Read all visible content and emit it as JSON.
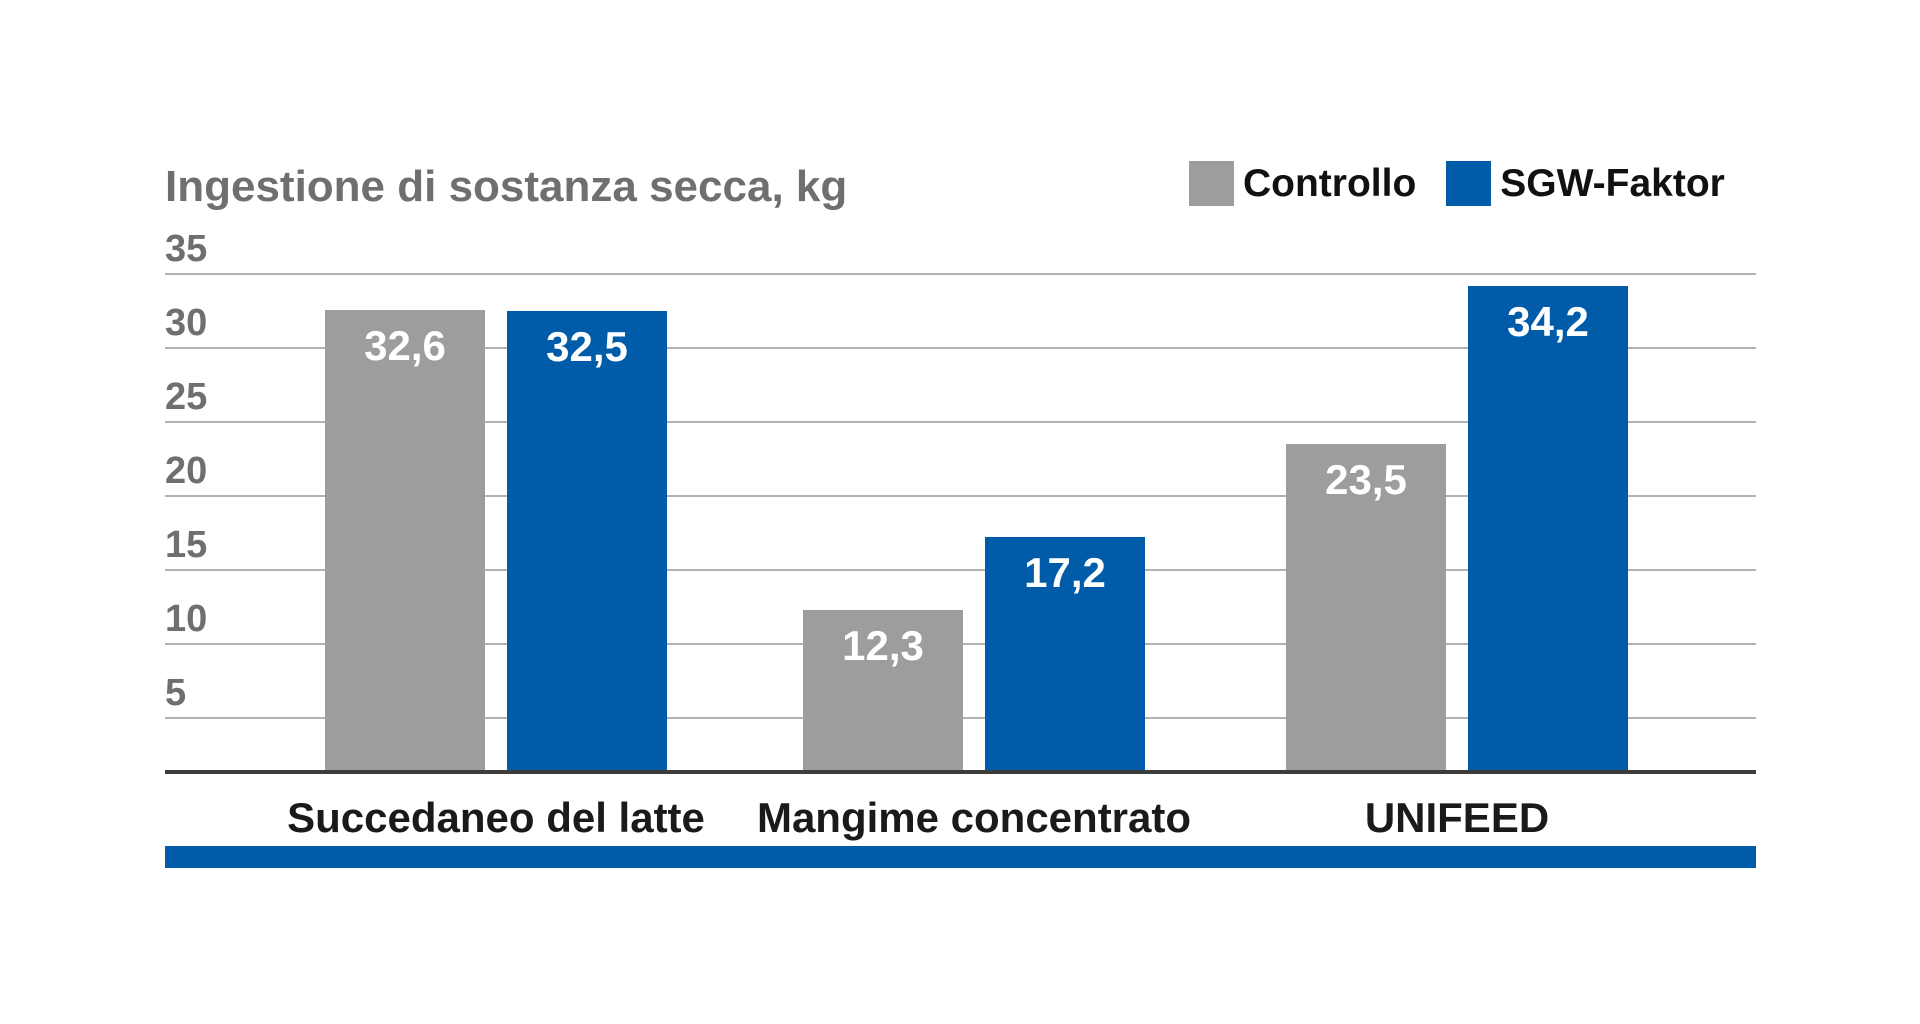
{
  "chart_data": {
    "type": "bar",
    "title": "Ingestione di sostanza secca, kg",
    "categories": [
      "Succedaneo del latte",
      "Mangime concentrato",
      "UNIFEED"
    ],
    "series": [
      {
        "name": "Controllo",
        "color": "#9d9d9c",
        "values": [
          32.6,
          12.3,
          23.5
        ],
        "display_labels": [
          "32,6",
          "12,3",
          "23,5"
        ]
      },
      {
        "name": "SGW-Faktor",
        "color": "#005ca9",
        "values": [
          32.5,
          17.2,
          34.2
        ],
        "display_labels": [
          "32,5",
          "17,2",
          "34,2"
        ]
      }
    ],
    "y_ticks": [
      5,
      10,
      15,
      20,
      25,
      30,
      35
    ],
    "ylim": [
      0,
      35
    ],
    "xlabel": "",
    "ylabel": "",
    "grid": true,
    "legend_position": "top-right",
    "value_label_position": "inside-top",
    "decimal_separator": ","
  },
  "colors": {
    "control_gray": "#9d9d9c",
    "sgw_blue": "#005ca9",
    "title_text": "#706f6f",
    "tick_text": "#706f6f",
    "gridline": "#b2b2b2",
    "axis_line": "#3c3c3b",
    "category_text": "#1a1a1a",
    "legend_text": "#111111",
    "value_text": "#ffffff",
    "accent_strip": "#005ca9",
    "background": "#ffffff"
  }
}
